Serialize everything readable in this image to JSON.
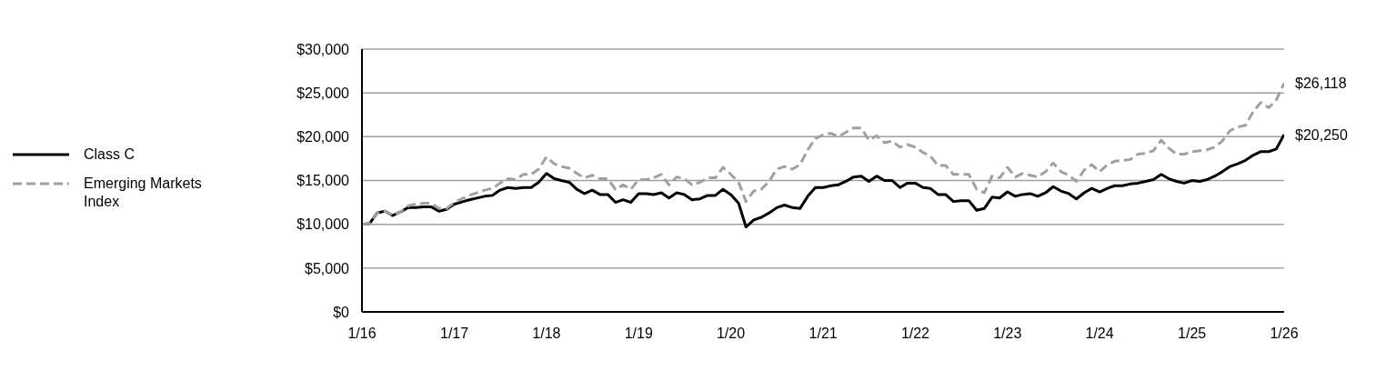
{
  "chart_data": {
    "type": "line",
    "x": [
      "2016-01",
      "2016-02",
      "2016-03",
      "2016-04",
      "2016-05",
      "2016-06",
      "2016-07",
      "2016-08",
      "2016-09",
      "2016-10",
      "2016-11",
      "2016-12",
      "2017-01",
      "2017-03",
      "2017-05",
      "2017-06",
      "2017-07",
      "2017-08",
      "2017-09",
      "2017-10",
      "2017-11",
      "2017-12",
      "2018-01",
      "2018-02",
      "2018-03",
      "2018-04",
      "2018-05",
      "2018-06",
      "2018-07",
      "2018-08",
      "2018-09",
      "2018-10",
      "2018-11",
      "2018-12",
      "2019-01",
      "2019-02",
      "2019-03",
      "2019-04",
      "2019-05",
      "2019-06",
      "2019-07",
      "2019-08",
      "2019-09",
      "2019-10",
      "2019-11",
      "2019-12",
      "2020-01",
      "2020-02",
      "2020-03",
      "2020-04",
      "2020-05",
      "2020-06",
      "2020-07",
      "2020-08",
      "2020-09",
      "2020-10",
      "2020-11",
      "2020-12",
      "2021-01",
      "2021-02",
      "2021-03",
      "2021-04",
      "2021-05",
      "2021-06",
      "2021-07",
      "2021-08",
      "2021-09",
      "2021-10",
      "2021-11",
      "2021-12",
      "2022-01",
      "2022-02",
      "2022-03",
      "2022-04",
      "2022-05",
      "2022-06",
      "2022-07",
      "2022-08",
      "2022-09",
      "2022-10",
      "2022-11",
      "2022-12",
      "2023-01",
      "2023-02",
      "2023-03",
      "2023-04",
      "2023-05",
      "2023-06",
      "2023-07",
      "2023-08",
      "2023-09",
      "2023-10",
      "2023-11",
      "2023-12",
      "2024-01",
      "2024-02",
      "2024-03",
      "2024-04",
      "2024-05",
      "2024-06",
      "2024-07",
      "2024-08",
      "2024-09",
      "2024-10",
      "2024-11",
      "2024-12",
      "2025-01",
      "2025-02",
      "2025-03",
      "2025-04",
      "2025-05",
      "2025-06",
      "2025-07",
      "2025-08",
      "2025-09",
      "2025-10",
      "2025-11",
      "2025-12",
      "2026-01"
    ],
    "series": [
      {
        "name": "Class C",
        "color": "#000000",
        "line_style": "solid",
        "values": [
          10000,
          10100,
          11300,
          11500,
          11000,
          11400,
          11900,
          11900,
          12000,
          12000,
          11500,
          11700,
          12300,
          12800,
          13200,
          13300,
          13900,
          14200,
          14100,
          14200,
          14200,
          14800,
          15800,
          15200,
          15000,
          14800,
          14000,
          13500,
          13900,
          13400,
          13400,
          12500,
          12800,
          12500,
          13500,
          13500,
          13400,
          13600,
          13000,
          13600,
          13400,
          12800,
          12900,
          13300,
          13300,
          14000,
          13400,
          12400,
          9700,
          10500,
          10800,
          11300,
          11900,
          12200,
          11900,
          11800,
          13200,
          14200,
          14200,
          14400,
          14500,
          14900,
          15400,
          15500,
          14900,
          15500,
          15000,
          15000,
          14200,
          14700,
          14700,
          14200,
          14100,
          13400,
          13400,
          12600,
          12700,
          12700,
          11600,
          11800,
          13100,
          13000,
          13700,
          13200,
          13400,
          13500,
          13200,
          13600,
          14300,
          13800,
          13500,
          12900,
          13600,
          14100,
          13700,
          14100,
          14400,
          14400,
          14600,
          14700,
          14900,
          15100,
          15700,
          15200,
          14900,
          14700,
          15000,
          14900,
          15100,
          15500,
          16000,
          16600,
          16900,
          17300,
          17900,
          18300,
          18300,
          18600,
          20250
        ]
      },
      {
        "name": "Emerging Markets Index",
        "color": "#a0a0a0",
        "line_style": "dashed",
        "values": [
          10000,
          10100,
          11300,
          11500,
          11000,
          11400,
          12100,
          12300,
          12400,
          12400,
          11800,
          11800,
          12500,
          13300,
          13900,
          14100,
          14700,
          15200,
          15100,
          15700,
          15700,
          16300,
          17700,
          16900,
          16600,
          16400,
          15800,
          15300,
          15600,
          15200,
          15200,
          14000,
          14500,
          14000,
          15100,
          15100,
          15300,
          15700,
          14500,
          15400,
          15200,
          14500,
          14800,
          15300,
          15300,
          16500,
          15700,
          14800,
          12600,
          13800,
          14000,
          14900,
          16300,
          16600,
          16300,
          16800,
          18500,
          19800,
          20200,
          20400,
          20000,
          20500,
          21000,
          21000,
          19600,
          20100,
          19300,
          19500,
          18800,
          19100,
          18800,
          18200,
          17800,
          16700,
          16700,
          15700,
          15700,
          15700,
          14000,
          13600,
          15500,
          15300,
          16500,
          15400,
          15800,
          15600,
          15400,
          16000,
          17000,
          16000,
          15600,
          14900,
          16200,
          16800,
          16000,
          16800,
          17200,
          17300,
          17400,
          18000,
          18100,
          18400,
          19600,
          18700,
          18000,
          18000,
          18300,
          18400,
          18500,
          18800,
          19500,
          20700,
          21100,
          21300,
          22900,
          23900,
          23300,
          24200,
          26118
        ]
      }
    ],
    "xlim": [
      "2016-01",
      "2026-01"
    ],
    "xticks": [
      {
        "value": "2016-01",
        "label": "1/16"
      },
      {
        "value": "2017-01",
        "label": "1/17"
      },
      {
        "value": "2018-01",
        "label": "1/18"
      },
      {
        "value": "2019-01",
        "label": "1/19"
      },
      {
        "value": "2020-01",
        "label": "1/20"
      },
      {
        "value": "2021-01",
        "label": "1/21"
      },
      {
        "value": "2022-01",
        "label": "1/22"
      },
      {
        "value": "2023-01",
        "label": "1/23"
      },
      {
        "value": "2024-01",
        "label": "1/24"
      },
      {
        "value": "2025-01",
        "label": "1/25"
      },
      {
        "value": "2026-01",
        "label": "1/26"
      }
    ],
    "ylim": [
      0,
      30000
    ],
    "yticks": [
      {
        "value": 0,
        "label": "$0"
      },
      {
        "value": 5000,
        "label": "$5,000"
      },
      {
        "value": 10000,
        "label": "$10,000"
      },
      {
        "value": 15000,
        "label": "$15,000"
      },
      {
        "value": 20000,
        "label": "$20,000"
      },
      {
        "value": 25000,
        "label": "$25,000"
      },
      {
        "value": 30000,
        "label": "$30,000"
      }
    ],
    "annotations": [
      {
        "text": "$26,118",
        "x": "2026-01",
        "y": 26118
      },
      {
        "text": "$20,250",
        "x": "2026-01",
        "y": 20250
      }
    ],
    "grid": "y",
    "legend": "left",
    "marker": "none"
  }
}
